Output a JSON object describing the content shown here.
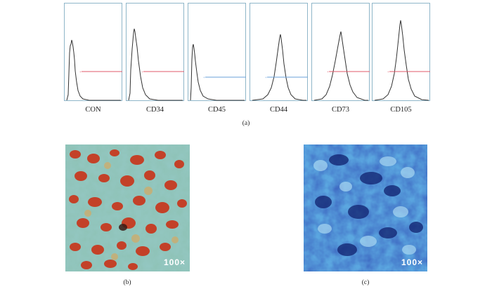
{
  "figure": {
    "histograms": [
      {
        "label": "CON",
        "marker_color": "#e05a6a"
      },
      {
        "label": "CD34",
        "marker_color": "#e05a6a"
      },
      {
        "label": "CD45",
        "marker_color": "#6aa0d8"
      },
      {
        "label": "CD44",
        "marker_color": "#6aa0d8"
      },
      {
        "label": "CD73",
        "marker_color": "#e05a6a"
      },
      {
        "label": "CD105",
        "marker_color": "#e05a6a"
      }
    ],
    "panel_a_label": "(a)",
    "panel_b_label": "(b)",
    "panel_c_label": "(c)",
    "panel_b_magnification": "100×",
    "panel_c_magnification": "100×"
  }
}
